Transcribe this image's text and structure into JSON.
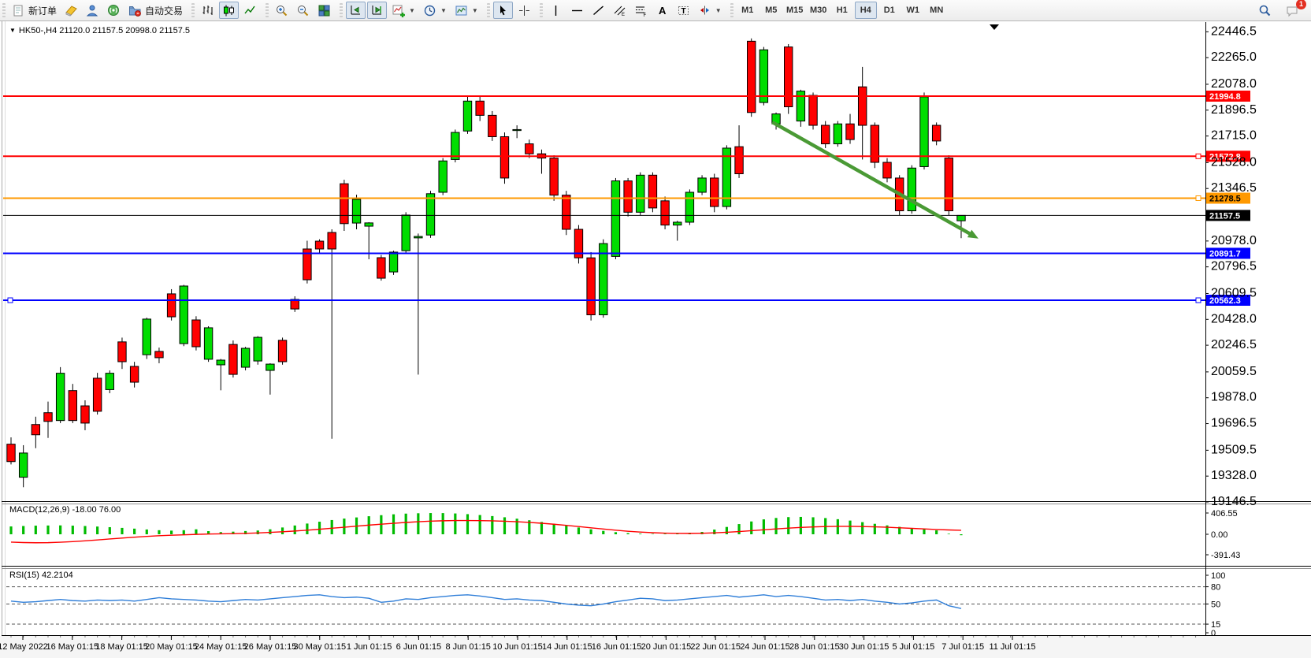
{
  "toolbar": {
    "groups": [
      {
        "name": "trade",
        "buttons": [
          {
            "name": "new-order-button",
            "icon": "new-order",
            "label": "新订单"
          },
          {
            "name": "metaeditor-button",
            "icon": "editor",
            "label": ""
          },
          {
            "name": "profile-button",
            "icon": "profile",
            "label": ""
          },
          {
            "name": "broadcast-button",
            "icon": "broadcast",
            "label": ""
          },
          {
            "name": "autotrading-button",
            "icon": "autotrading",
            "label": "自动交易"
          }
        ]
      },
      {
        "name": "chart-type",
        "buttons": [
          {
            "name": "bar-chart-button",
            "icon": "bars",
            "label": ""
          },
          {
            "name": "candlestick-button",
            "icon": "candles",
            "label": "",
            "active": true
          },
          {
            "name": "line-chart-button",
            "icon": "linechart",
            "label": ""
          }
        ]
      },
      {
        "name": "zoom",
        "buttons": [
          {
            "name": "zoom-in-button",
            "icon": "zoomin",
            "label": ""
          },
          {
            "name": "zoom-out-button",
            "icon": "zoomout",
            "label": ""
          },
          {
            "name": "tile-windows-button",
            "icon": "tile",
            "label": ""
          }
        ]
      },
      {
        "name": "scroll",
        "buttons": [
          {
            "name": "auto-scroll-button",
            "icon": "autoscroll",
            "label": "",
            "active": true
          },
          {
            "name": "chart-shift-button",
            "icon": "chartshift",
            "label": "",
            "active": true
          },
          {
            "name": "indicators-button",
            "icon": "indicators",
            "label": "",
            "dropdown": true
          },
          {
            "name": "periods-button",
            "icon": "clock",
            "label": "",
            "dropdown": true
          },
          {
            "name": "templates-button",
            "icon": "template",
            "label": "",
            "dropdown": true
          }
        ]
      },
      {
        "name": "cursor-tools",
        "buttons": [
          {
            "name": "cursor-button",
            "icon": "cursor",
            "label": "",
            "active": true
          },
          {
            "name": "crosshair-button",
            "icon": "crosshair",
            "label": ""
          }
        ]
      },
      {
        "name": "draw-tools",
        "buttons": [
          {
            "name": "vertical-line-button",
            "icon": "vline",
            "label": ""
          },
          {
            "name": "horizontal-line-button",
            "icon": "hline",
            "label": ""
          },
          {
            "name": "trendline-button",
            "icon": "trendline",
            "label": ""
          },
          {
            "name": "channel-button",
            "icon": "channel",
            "label": ""
          },
          {
            "name": "fibonacci-button",
            "icon": "fibo",
            "label": ""
          },
          {
            "name": "text-button",
            "icon": "text",
            "label": ""
          },
          {
            "name": "label-button",
            "icon": "label",
            "label": ""
          },
          {
            "name": "arrows-button",
            "icon": "arrows",
            "label": "",
            "dropdown": true
          }
        ]
      }
    ],
    "timeframes": {
      "items": [
        "M1",
        "M5",
        "M15",
        "M30",
        "H1",
        "H4",
        "D1",
        "W1",
        "MN"
      ],
      "active": "H4"
    },
    "right_icons": [
      {
        "name": "search-button",
        "icon": "search"
      },
      {
        "name": "chat-button",
        "icon": "chat",
        "badge": "1"
      }
    ]
  },
  "chart_data": {
    "type": "candlestick",
    "symbol": "HK50-",
    "timeframe": "H4",
    "title_text": "HK50-,H4  21120.0 21157.5 20998.0 21157.5",
    "current_bar": {
      "open": 21120.0,
      "high": 21157.5,
      "low": 20998.0,
      "close": 21157.5
    },
    "y_range": {
      "top": 22503,
      "bottom": 19157
    },
    "price_ticks": [
      22446.5,
      22265.0,
      22078.0,
      21896.5,
      21715.0,
      21528.0,
      21346.5,
      20978.0,
      20796.5,
      20609.5,
      20428.0,
      20246.5,
      20059.5,
      19878.0,
      19696.5,
      19509.5,
      19328.0,
      19146.5
    ],
    "hlines": [
      {
        "price": 21994.8,
        "label": "21994.8",
        "color": "#ff0000",
        "tag_bg": "#ff0000",
        "tag_fg": "#ffffff",
        "handle_right": false,
        "handle_left": false
      },
      {
        "price": 21572.8,
        "label": "21572.8",
        "color": "#ff0000",
        "tag_bg": "#ff0000",
        "tag_fg": "#ffffff",
        "handle_right": true,
        "handle_left": false
      },
      {
        "price": 21278.5,
        "label": "21278.5",
        "color": "#ff9900",
        "tag_bg": "#ff9900",
        "tag_fg": "#000000",
        "handle_right": true,
        "handle_left": false
      },
      {
        "price": 21157.5,
        "label": "21157.5",
        "color": "#000000",
        "tag_bg": "#000000",
        "tag_fg": "#ffffff",
        "handle_right": false,
        "handle_left": false
      },
      {
        "price": 20891.7,
        "label": "20891.7",
        "color": "#0000ff",
        "tag_bg": "#0000ff",
        "tag_fg": "#ffffff",
        "handle_right": false,
        "handle_left": false
      },
      {
        "price": 20562.3,
        "label": "20562.3",
        "color": "#0000ff",
        "tag_bg": "#0000ff",
        "tag_fg": "#ffffff",
        "handle_right": true,
        "handle_left": true
      }
    ],
    "candles": [
      [
        19552,
        19600,
        19410,
        19430
      ],
      [
        19320,
        19545,
        19250,
        19490
      ],
      [
        19690,
        19745,
        19524,
        19618
      ],
      [
        19773,
        19851,
        19596,
        19712
      ],
      [
        19718,
        20093,
        19700,
        20050
      ],
      [
        19928,
        19975,
        19700,
        19718
      ],
      [
        19821,
        19860,
        19650,
        19700
      ],
      [
        20015,
        20053,
        19760,
        19783
      ],
      [
        19935,
        20070,
        19910,
        20050
      ],
      [
        20270,
        20300,
        20080,
        20131
      ],
      [
        20098,
        20130,
        19950,
        19987
      ],
      [
        20180,
        20440,
        20150,
        20430
      ],
      [
        20203,
        20230,
        20120,
        20159
      ],
      [
        20607,
        20640,
        20420,
        20446
      ],
      [
        20258,
        20670,
        20240,
        20662
      ],
      [
        20424,
        20450,
        20210,
        20236
      ],
      [
        20148,
        20380,
        20130,
        20369
      ],
      [
        20109,
        20150,
        19930,
        20142
      ],
      [
        20252,
        20280,
        20020,
        20042
      ],
      [
        20092,
        20235,
        20070,
        20225
      ],
      [
        20136,
        20310,
        20110,
        20302
      ],
      [
        20070,
        20120,
        19900,
        20114
      ],
      [
        20281,
        20300,
        20110,
        20131
      ],
      [
        20568,
        20590,
        20480,
        20501
      ],
      [
        20922,
        20980,
        20680,
        20706
      ],
      [
        20977,
        20990,
        20890,
        20922
      ],
      [
        21038,
        21060,
        19590,
        20922
      ],
      [
        21380,
        21408,
        21049,
        21100
      ],
      [
        21104,
        21303,
        21060,
        21270
      ],
      [
        21082,
        21110,
        20850,
        21105
      ],
      [
        20861,
        20880,
        20700,
        20717
      ],
      [
        20761,
        20910,
        20740,
        20900
      ],
      [
        20910,
        21180,
        20890,
        21160
      ],
      [
        21000,
        21030,
        20040,
        21010
      ],
      [
        21020,
        21330,
        21000,
        21310
      ],
      [
        21320,
        21560,
        21300,
        21540
      ],
      [
        21550,
        21760,
        21530,
        21740
      ],
      [
        21750,
        21990,
        21730,
        21960
      ],
      [
        21960,
        21995,
        21820,
        21860
      ],
      [
        21860,
        21890,
        21680,
        21710
      ],
      [
        21710,
        21740,
        21380,
        21420
      ],
      [
        21755,
        21790,
        21700,
        21760
      ],
      [
        21660,
        21690,
        21560,
        21590
      ],
      [
        21590,
        21620,
        21450,
        21560
      ],
      [
        21560,
        21580,
        21260,
        21300
      ],
      [
        21300,
        21330,
        21020,
        21060
      ],
      [
        21060,
        21090,
        20820,
        20860
      ],
      [
        20860,
        20900,
        20420,
        20460
      ],
      [
        20460,
        20990,
        20440,
        20960
      ],
      [
        20870,
        21420,
        20850,
        21400
      ],
      [
        21400,
        21420,
        21150,
        21180
      ],
      [
        21180,
        21460,
        21160,
        21440
      ],
      [
        21440,
        21460,
        21180,
        21210
      ],
      [
        21260,
        21290,
        21060,
        21090
      ],
      [
        21090,
        21120,
        20980,
        21110
      ],
      [
        21110,
        21340,
        21090,
        21320
      ],
      [
        21320,
        21440,
        21300,
        21420
      ],
      [
        21420,
        21450,
        21180,
        21220
      ],
      [
        21220,
        21650,
        21200,
        21630
      ],
      [
        21640,
        21790,
        21420,
        21450
      ],
      [
        22380,
        22400,
        21850,
        21880
      ],
      [
        21950,
        22340,
        21930,
        22320
      ],
      [
        21800,
        21880,
        21760,
        21870
      ],
      [
        22340,
        22360,
        21870,
        21920
      ],
      [
        21820,
        22040,
        21780,
        22030
      ],
      [
        22000,
        22020,
        21760,
        21790
      ],
      [
        21790,
        21820,
        21630,
        21660
      ],
      [
        21660,
        21820,
        21640,
        21800
      ],
      [
        21800,
        21870,
        21660,
        21690
      ],
      [
        22060,
        22200,
        21550,
        21790
      ],
      [
        21790,
        21810,
        21490,
        21530
      ],
      [
        21530,
        21560,
        21390,
        21420
      ],
      [
        21420,
        21440,
        21160,
        21190
      ],
      [
        21190,
        21510,
        21170,
        21490
      ],
      [
        21500,
        22020,
        21480,
        21990
      ],
      [
        21790,
        21810,
        21650,
        21680
      ],
      [
        21560,
        21580,
        21160,
        21190
      ],
      [
        21120,
        21157.5,
        20998,
        21157.5
      ]
    ],
    "date_labels": [
      "12 May 2022",
      "16 May 01:15",
      "18 May 01:15",
      "20 May 01:15",
      "24 May 01:15",
      "26 May 01:15",
      "30 May 01:15",
      "1 Jun 01:15",
      "6 Jun 01:15",
      "8 Jun 01:15",
      "10 Jun 01:15",
      "14 Jun 01:15",
      "16 Jun 01:15",
      "20 Jun 01:15",
      "22 Jun 01:15",
      "24 Jun 01:15",
      "28 Jun 01:15",
      "30 Jun 01:15",
      "5 Jul 01:15",
      "7 Jul 01:15",
      "11 Jul 01:15"
    ],
    "macd": {
      "label": "MACD(12,26,9) -18.00 76.00",
      "params": "12,26,9",
      "value": -18.0,
      "signal_value": 76.0,
      "axis_ticks": [
        406.55,
        0.0,
        -391.43
      ],
      "axis_labels": [
        "406.55",
        "0.00",
        "-391.43"
      ],
      "histogram": [
        150,
        158,
        165,
        168,
        170,
        165,
        158,
        148,
        136,
        122,
        108,
        92,
        78,
        70,
        78,
        95,
        60,
        42,
        50,
        62,
        72,
        95,
        130,
        168,
        205,
        240,
        272,
        300,
        322,
        345,
        365,
        382,
        395,
        402,
        406,
        405,
        398,
        385,
        368,
        348,
        325,
        298,
        268,
        235,
        200,
        165,
        130,
        95,
        65,
        40,
        22,
        12,
        8,
        10,
        18,
        30,
        45,
        90,
        140,
        195,
        245,
        285,
        312,
        328,
        332,
        325,
        310,
        288,
        262,
        232,
        200,
        170,
        142,
        118,
        98,
        75,
        10,
        -18
      ],
      "signal_line": [
        -150,
        -158,
        -162,
        -160,
        -152,
        -140,
        -125,
        -108,
        -90,
        -72,
        -55,
        -40,
        -28,
        -18,
        -10,
        -2,
        4,
        8,
        12,
        18,
        26,
        36,
        48,
        62,
        78,
        96,
        115,
        135,
        155,
        175,
        193,
        210,
        226,
        240,
        251,
        258,
        262,
        263,
        261,
        257,
        250,
        240,
        227,
        211,
        192,
        171,
        148,
        124,
        100,
        78,
        58,
        42,
        30,
        22,
        18,
        17,
        20,
        27,
        38,
        52,
        68,
        85,
        102,
        118,
        131,
        141,
        148,
        151,
        151,
        148,
        142,
        134,
        124,
        113,
        102,
        92,
        83,
        76
      ]
    },
    "rsi": {
      "label": "RSI(15) 42.2104",
      "period": 15,
      "value": 42.2104,
      "levels": [
        80,
        50,
        15
      ],
      "axis_labels": [
        "100",
        "80",
        "50",
        "15",
        "0"
      ],
      "axis_values": [
        100,
        80,
        50,
        15,
        0
      ],
      "values": [
        55,
        53,
        54,
        56,
        58,
        56,
        55,
        57,
        56,
        57,
        55,
        58,
        61,
        59,
        58,
        57,
        55,
        54,
        56,
        58,
        57,
        59,
        61,
        63,
        65,
        66,
        63,
        61,
        62,
        60,
        53,
        55,
        59,
        58,
        61,
        63,
        65,
        66,
        64,
        61,
        58,
        59,
        57,
        56,
        53,
        50,
        48,
        47,
        50,
        54,
        57,
        60,
        59,
        56,
        57,
        59,
        61,
        63,
        65,
        62,
        64,
        66,
        63,
        65,
        63,
        60,
        57,
        58,
        56,
        58,
        55,
        53,
        50,
        52,
        55,
        57,
        47,
        42.2
      ]
    },
    "trend_arrow": {
      "from_bar": 61.7,
      "from_price": 21812,
      "to_bar": 78.4,
      "to_price": 20995,
      "color": "#4a9a35"
    }
  },
  "colors": {
    "up": "#00dd00",
    "down": "#ff0000",
    "wick": "#000000",
    "macd_hist": "#00bb00",
    "macd_signal": "#ff0000",
    "rsi_line": "#2f7ed8",
    "axis_text": "#000000",
    "panel_bg": "#ffffff"
  }
}
